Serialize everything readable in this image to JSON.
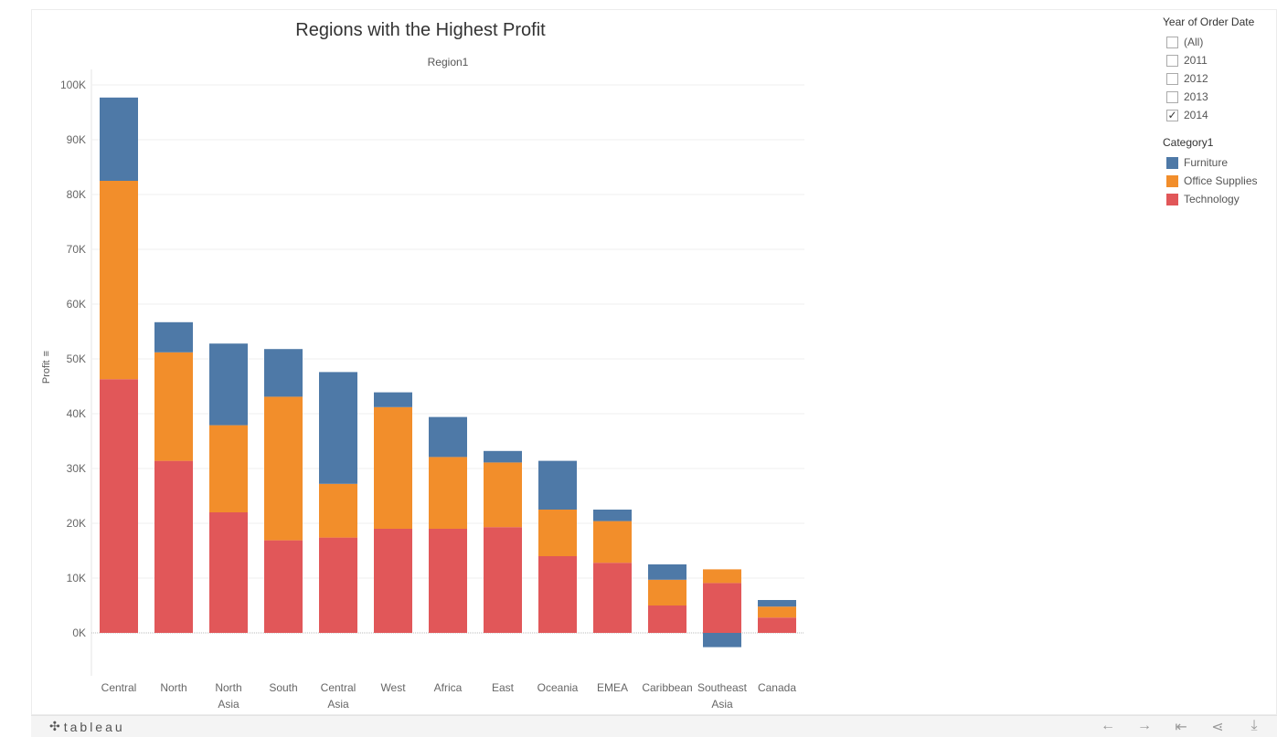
{
  "chart_data": {
    "type": "bar",
    "stacked": true,
    "title": "Regions with the Highest Profit",
    "column_header": "Region1",
    "ylabel": "Profit",
    "xlabel": "",
    "ylim": [
      -8000,
      102000
    ],
    "yticks": [
      0,
      10000,
      20000,
      30000,
      40000,
      50000,
      60000,
      70000,
      80000,
      90000,
      100000
    ],
    "ytick_labels": [
      "0K",
      "10K",
      "20K",
      "30K",
      "40K",
      "50K",
      "60K",
      "70K",
      "80K",
      "90K",
      "100K"
    ],
    "categories": [
      [
        "Central"
      ],
      [
        "North"
      ],
      [
        "North",
        "Asia"
      ],
      [
        "South"
      ],
      [
        "Central",
        "Asia"
      ],
      [
        "West"
      ],
      [
        "Africa"
      ],
      [
        "East"
      ],
      [
        "Oceania"
      ],
      [
        "EMEA"
      ],
      [
        "Caribbean"
      ],
      [
        "Southeast",
        "Asia"
      ],
      [
        "Canada"
      ]
    ],
    "series": [
      {
        "name": "Technology",
        "color": "#e15759",
        "values": [
          46300,
          31400,
          22000,
          16900,
          17400,
          19000,
          19000,
          19300,
          14000,
          12800,
          5000,
          9100,
          2800
        ]
      },
      {
        "name": "Office Supplies",
        "color": "#f28e2b",
        "values": [
          36200,
          19800,
          15900,
          26200,
          9800,
          22200,
          13100,
          11800,
          8500,
          7600,
          4700,
          2500,
          2000
        ]
      },
      {
        "name": "Furniture",
        "color": "#4e79a7",
        "values": [
          15200,
          5500,
          14900,
          8700,
          20400,
          2700,
          7300,
          2100,
          8900,
          2100,
          2800,
          -2600,
          1200
        ]
      }
    ],
    "grid": true,
    "legend_position": "right"
  },
  "filters": {
    "title": "Year of Order Date",
    "options": [
      {
        "label": "(All)",
        "checked": false
      },
      {
        "label": "2011",
        "checked": false
      },
      {
        "label": "2012",
        "checked": false
      },
      {
        "label": "2013",
        "checked": false
      },
      {
        "label": "2014",
        "checked": true
      }
    ]
  },
  "legend": {
    "title": "Category1",
    "items": [
      {
        "label": "Furniture",
        "color": "#4e79a7"
      },
      {
        "label": "Office Supplies",
        "color": "#f28e2b"
      },
      {
        "label": "Technology",
        "color": "#e15759"
      }
    ]
  },
  "toolbar": {
    "brand": "tableau",
    "brand_icon": "tableau-logo-icon",
    "buttons": [
      {
        "name": "undo",
        "icon": "arrow-left-icon",
        "glyph": "←"
      },
      {
        "name": "redo",
        "icon": "arrow-right-icon",
        "glyph": "→"
      },
      {
        "name": "revert",
        "icon": "revert-icon",
        "glyph": "⇤"
      },
      {
        "name": "share",
        "icon": "share-icon",
        "glyph": "⋖"
      },
      {
        "name": "download",
        "icon": "download-icon",
        "glyph": "⤓"
      }
    ]
  }
}
